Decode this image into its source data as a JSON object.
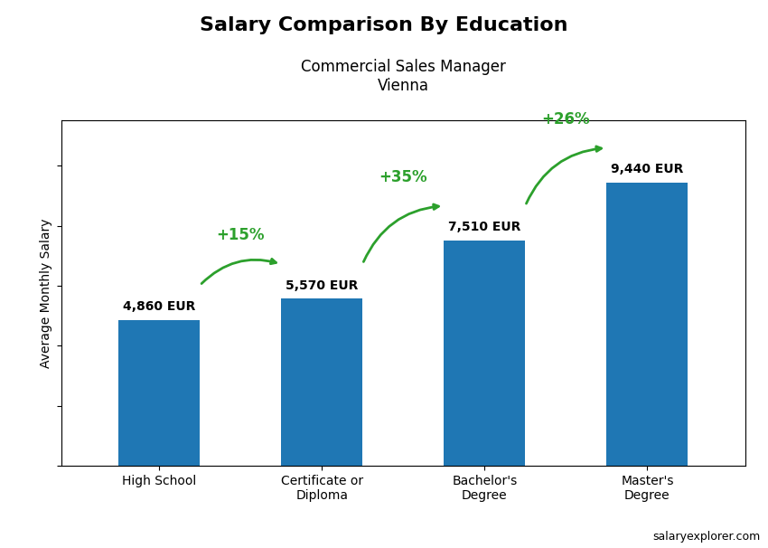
{
  "chart_data": {
    "type": "bar",
    "title": "Salary Comparison By Education",
    "subtitle": "Commercial Sales Manager\nVienna",
    "y_label": "Average Monthly Salary",
    "categories": [
      "High School",
      "Certificate or\nDiploma",
      "Bachelor's\nDegree",
      "Master's\nDegree"
    ],
    "values": [
      4860,
      5570,
      7510,
      9440
    ],
    "value_labels": [
      "4,860 EUR",
      "5,570 EUR",
      "7,510 EUR",
      "9,440 EUR"
    ],
    "data_labels": true,
    "ylim": [
      0,
      11500
    ],
    "yticks": [
      0,
      2000,
      4000,
      6000,
      8000,
      10000
    ],
    "tick_labels": "x",
    "grid": false,
    "annotations": [
      {
        "text": "+15%",
        "from": 0,
        "to": 1
      },
      {
        "text": "+35%",
        "from": 1,
        "to": 2
      },
      {
        "text": "+26%",
        "from": 2,
        "to": 3
      },
      {
        "text": "salaryexplorer.com"
      }
    ]
  }
}
